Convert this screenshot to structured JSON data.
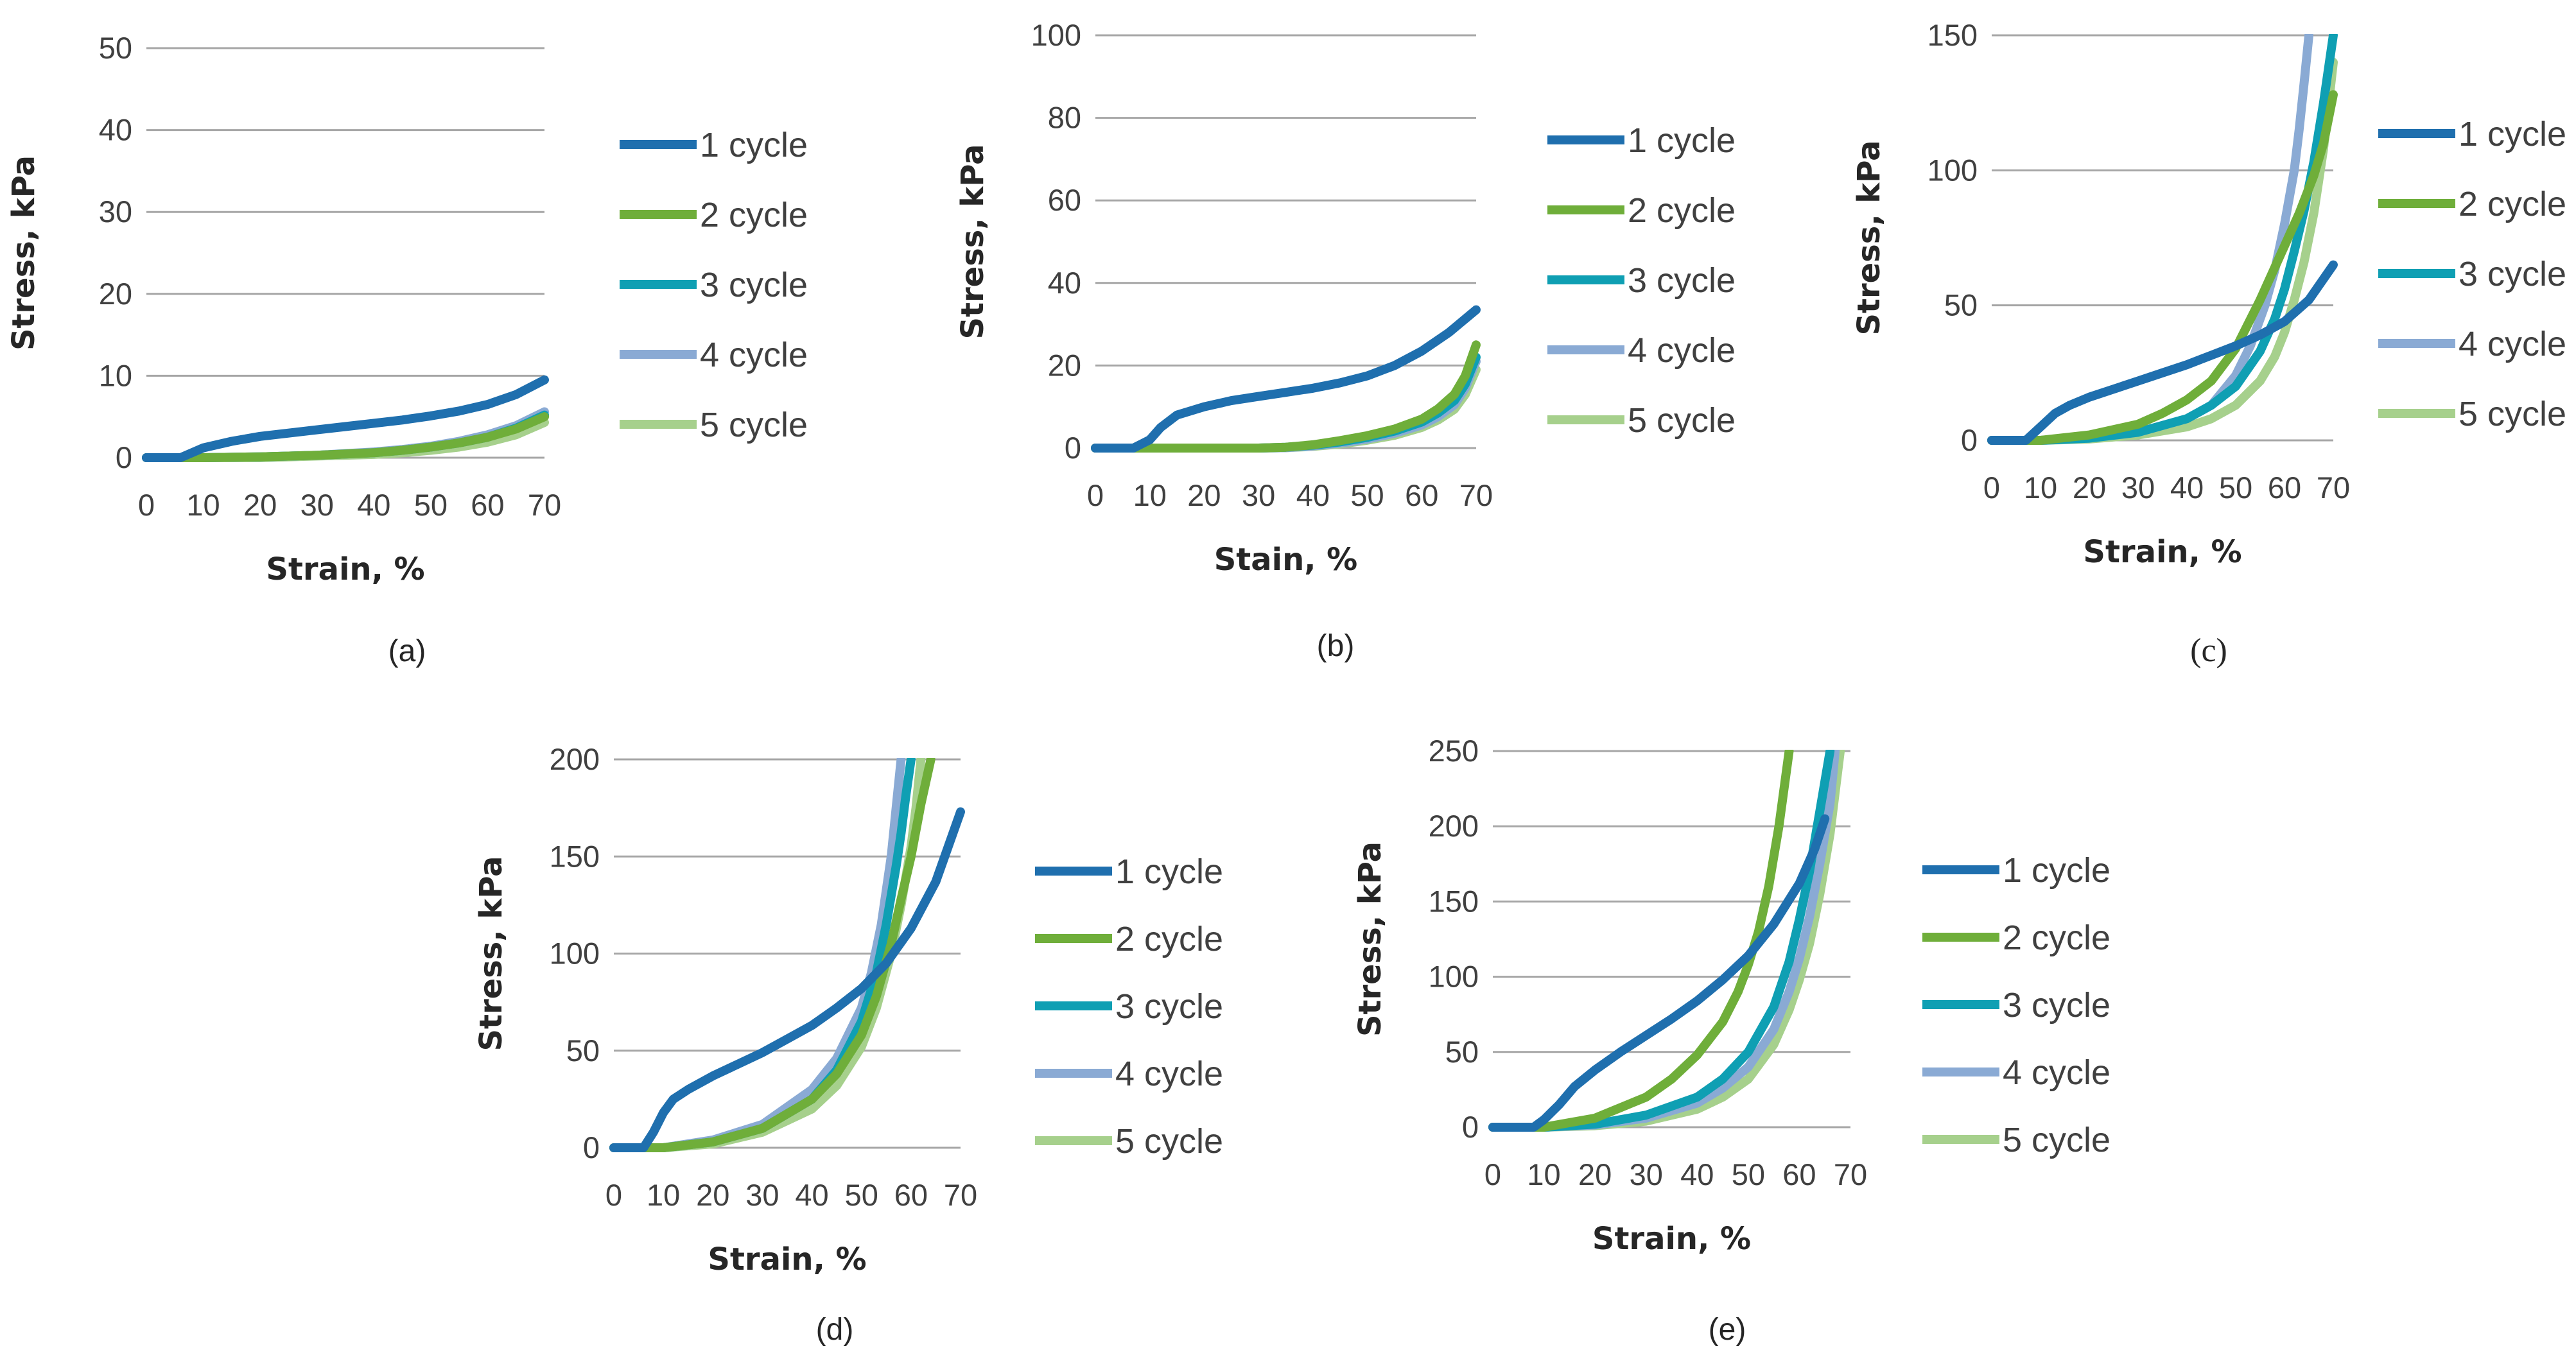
{
  "colors": {
    "1 cycle": "#1f6fae",
    "2 cycle": "#6fae3a",
    "3 cycle": "#0f9fb3",
    "4 cycle": "#8aaad4",
    "5 cycle": "#a6d08c"
  },
  "chart_data": [
    {
      "id": "a",
      "type": "line",
      "caption": "(a)",
      "xlabel": "Strain, %",
      "ylabel": "Stress, kPa",
      "xlim": [
        0,
        70
      ],
      "ylim": [
        0,
        50
      ],
      "xticks": [
        0,
        10,
        20,
        30,
        40,
        50,
        60,
        70
      ],
      "yticks": [
        0,
        10,
        20,
        30,
        40,
        50
      ],
      "legend_position": "right",
      "series": [
        {
          "name": "1 cycle",
          "x": [
            0,
            6,
            10,
            15,
            20,
            25,
            30,
            35,
            40,
            45,
            50,
            55,
            60,
            65,
            70
          ],
          "y": [
            0,
            0,
            1.2,
            2.0,
            2.6,
            3.0,
            3.4,
            3.8,
            4.2,
            4.6,
            5.1,
            5.7,
            6.5,
            7.7,
            9.5
          ]
        },
        {
          "name": "2 cycle",
          "x": [
            0,
            10,
            20,
            30,
            40,
            45,
            50,
            55,
            60,
            65,
            70
          ],
          "y": [
            0,
            0,
            0.1,
            0.3,
            0.6,
            0.9,
            1.3,
            1.8,
            2.5,
            3.5,
            5.0
          ]
        },
        {
          "name": "3 cycle",
          "x": [
            0,
            10,
            20,
            30,
            40,
            45,
            50,
            55,
            60,
            65,
            70
          ],
          "y": [
            0,
            0,
            0.1,
            0.3,
            0.6,
            0.9,
            1.3,
            1.8,
            2.5,
            3.6,
            5.2
          ]
        },
        {
          "name": "4 cycle",
          "x": [
            0,
            10,
            20,
            30,
            40,
            45,
            50,
            55,
            60,
            65,
            70
          ],
          "y": [
            0,
            0,
            0.1,
            0.3,
            0.7,
            1.0,
            1.4,
            2.0,
            2.8,
            3.9,
            5.6
          ]
        },
        {
          "name": "5 cycle",
          "x": [
            0,
            10,
            20,
            30,
            40,
            45,
            50,
            55,
            60,
            65,
            70
          ],
          "y": [
            0,
            0,
            0,
            0.2,
            0.4,
            0.6,
            0.9,
            1.3,
            1.9,
            2.8,
            4.3
          ]
        }
      ]
    },
    {
      "id": "b",
      "type": "line",
      "caption": "(b)",
      "xlabel": "Stain, %",
      "ylabel": "Stress, kPa",
      "xlim": [
        0,
        70
      ],
      "ylim": [
        0,
        100
      ],
      "xticks": [
        0,
        10,
        20,
        30,
        40,
        50,
        60,
        70
      ],
      "yticks": [
        0,
        20,
        40,
        60,
        80,
        100
      ],
      "legend_position": "right",
      "series": [
        {
          "name": "1 cycle",
          "x": [
            0,
            7,
            10,
            12,
            15,
            20,
            25,
            30,
            35,
            40,
            45,
            50,
            55,
            60,
            65,
            70
          ],
          "y": [
            0,
            0,
            2,
            5,
            8,
            10,
            11.5,
            12.5,
            13.5,
            14.5,
            15.8,
            17.5,
            20,
            23.5,
            28,
            33.5
          ]
        },
        {
          "name": "2 cycle",
          "x": [
            0,
            30,
            35,
            40,
            45,
            50,
            55,
            60,
            63,
            66,
            68,
            70
          ],
          "y": [
            0,
            0,
            0.2,
            0.8,
            1.8,
            3.0,
            4.6,
            7.0,
            9.5,
            13,
            17.5,
            25
          ]
        },
        {
          "name": "3 cycle",
          "x": [
            0,
            30,
            35,
            40,
            45,
            50,
            55,
            60,
            63,
            66,
            68,
            70
          ],
          "y": [
            0,
            0,
            0.2,
            0.7,
            1.5,
            2.6,
            4.1,
            6.3,
            8.5,
            11.5,
            15.5,
            22
          ]
        },
        {
          "name": "4 cycle",
          "x": [
            0,
            30,
            35,
            40,
            45,
            50,
            55,
            60,
            63,
            66,
            68,
            70
          ],
          "y": [
            0,
            0,
            0.1,
            0.5,
            1.2,
            2.2,
            3.6,
            5.6,
            7.6,
            10.5,
            14.5,
            21
          ]
        },
        {
          "name": "5 cycle",
          "x": [
            0,
            30,
            35,
            40,
            45,
            50,
            55,
            60,
            63,
            66,
            68,
            70
          ],
          "y": [
            0,
            0,
            0.1,
            0.4,
            1.0,
            1.9,
            3.1,
            5.0,
            6.8,
            9.4,
            13,
            19
          ]
        }
      ]
    },
    {
      "id": "c",
      "type": "line",
      "caption": "(c)",
      "xlabel": "Strain, %",
      "ylabel": "Stress, kPa",
      "xlim": [
        0,
        70
      ],
      "ylim": [
        0,
        150
      ],
      "xticks": [
        0,
        10,
        20,
        30,
        40,
        50,
        60,
        70
      ],
      "yticks": [
        0,
        50,
        100,
        150
      ],
      "legend_position": "right",
      "series": [
        {
          "name": "1 cycle",
          "x": [
            0,
            7,
            10,
            13,
            16,
            20,
            25,
            30,
            35,
            40,
            45,
            50,
            55,
            60,
            65,
            70
          ],
          "y": [
            0,
            0,
            5,
            10,
            13,
            16,
            19,
            22,
            25,
            28,
            31.5,
            35,
            39,
            44,
            52,
            65
          ]
        },
        {
          "name": "2 cycle",
          "x": [
            0,
            10,
            20,
            30,
            35,
            40,
            45,
            50,
            55,
            60,
            63,
            66,
            68,
            70
          ],
          "y": [
            0,
            0,
            2,
            6,
            10,
            15,
            22,
            34,
            52,
            72,
            84,
            98,
            110,
            128
          ]
        },
        {
          "name": "3 cycle",
          "x": [
            0,
            10,
            20,
            30,
            40,
            45,
            50,
            55,
            58,
            60,
            62,
            64,
            66,
            68,
            70
          ],
          "y": [
            0,
            0,
            0.8,
            3,
            8,
            13,
            20,
            33,
            45,
            56,
            70,
            85,
            103,
            125,
            150
          ]
        },
        {
          "name": "4 cycle",
          "x": [
            0,
            10,
            20,
            30,
            40,
            45,
            50,
            53,
            56,
            58,
            60,
            62,
            63,
            64,
            65
          ],
          "y": [
            0,
            0,
            0.8,
            3,
            8,
            13,
            24,
            35,
            50,
            63,
            80,
            100,
            115,
            132,
            150
          ]
        },
        {
          "name": "5 cycle",
          "x": [
            0,
            10,
            20,
            30,
            40,
            45,
            50,
            55,
            58,
            60,
            62,
            64,
            66,
            68,
            70
          ],
          "y": [
            0,
            0,
            0.5,
            2,
            5,
            8,
            13,
            22,
            31,
            40,
            52,
            66,
            84,
            108,
            140
          ]
        }
      ]
    },
    {
      "id": "d",
      "type": "line",
      "caption": "(d)",
      "xlabel": "Strain, %",
      "ylabel": "Stress, kPa",
      "xlim": [
        0,
        70
      ],
      "ylim": [
        0,
        200
      ],
      "xticks": [
        0,
        10,
        20,
        30,
        40,
        50,
        60,
        70
      ],
      "yticks": [
        0,
        50,
        100,
        150,
        200
      ],
      "legend_position": "right",
      "series": [
        {
          "name": "1 cycle",
          "x": [
            0,
            6,
            8,
            10,
            12,
            15,
            20,
            25,
            30,
            35,
            40,
            45,
            50,
            55,
            60,
            65,
            70
          ],
          "y": [
            0,
            0,
            8,
            18,
            25,
            30,
            37,
            43,
            49,
            56,
            63,
            72,
            82,
            95,
            113,
            137,
            173
          ]
        },
        {
          "name": "2 cycle",
          "x": [
            0,
            10,
            20,
            30,
            40,
            45,
            50,
            53,
            56,
            58,
            60,
            62,
            64
          ],
          "y": [
            0,
            0,
            3,
            10,
            25,
            38,
            58,
            78,
            105,
            128,
            150,
            177,
            200
          ]
        },
        {
          "name": "3 cycle",
          "x": [
            0,
            10,
            20,
            30,
            40,
            45,
            50,
            53,
            55,
            57,
            58,
            59,
            60
          ],
          "y": [
            0,
            0,
            3,
            10,
            25,
            40,
            65,
            90,
            115,
            145,
            162,
            182,
            200
          ]
        },
        {
          "name": "4 cycle",
          "x": [
            0,
            10,
            20,
            30,
            40,
            45,
            50,
            52,
            54,
            56,
            57,
            58
          ],
          "y": [
            0,
            0,
            4,
            12,
            30,
            46,
            72,
            90,
            115,
            150,
            175,
            200
          ]
        },
        {
          "name": "5 cycle",
          "x": [
            0,
            10,
            20,
            30,
            40,
            45,
            50,
            53,
            56,
            58,
            60,
            61,
            62
          ],
          "y": [
            0,
            0,
            2,
            8,
            20,
            32,
            52,
            72,
            100,
            125,
            155,
            175,
            200
          ]
        }
      ]
    },
    {
      "id": "e",
      "type": "line",
      "caption": "(e)",
      "xlabel": "Strain, %",
      "ylabel": "Stress, kPa",
      "xlim": [
        0,
        70
      ],
      "ylim": [
        0,
        250
      ],
      "xticks": [
        0,
        10,
        20,
        30,
        40,
        50,
        60,
        70
      ],
      "yticks": [
        0,
        50,
        100,
        150,
        200,
        250
      ],
      "legend_position": "right",
      "series": [
        {
          "name": "1 cycle",
          "x": [
            0,
            8,
            10,
            13,
            16,
            20,
            25,
            30,
            35,
            40,
            45,
            50,
            55,
            60,
            63,
            65
          ],
          "y": [
            0,
            0,
            5,
            15,
            27,
            38,
            50,
            61,
            72,
            84,
            98,
            114,
            135,
            162,
            185,
            205
          ]
        },
        {
          "name": "2 cycle",
          "x": [
            0,
            10,
            20,
            30,
            35,
            40,
            45,
            48,
            50,
            52,
            54,
            56,
            58
          ],
          "y": [
            0,
            0,
            6,
            20,
            32,
            48,
            70,
            90,
            108,
            130,
            160,
            200,
            250
          ]
        },
        {
          "name": "3 cycle",
          "x": [
            0,
            10,
            20,
            30,
            40,
            45,
            50,
            55,
            58,
            60,
            62,
            64,
            66
          ],
          "y": [
            0,
            0,
            2,
            8,
            20,
            32,
            50,
            80,
            110,
            138,
            170,
            210,
            250
          ]
        },
        {
          "name": "4 cycle",
          "x": [
            0,
            10,
            20,
            30,
            40,
            45,
            50,
            55,
            58,
            60,
            62,
            64,
            66,
            67
          ],
          "y": [
            0,
            0,
            1.5,
            6,
            16,
            26,
            40,
            65,
            90,
            112,
            140,
            175,
            215,
            250
          ]
        },
        {
          "name": "5 cycle",
          "x": [
            0,
            10,
            20,
            30,
            40,
            45,
            50,
            55,
            58,
            60,
            62,
            64,
            66,
            68
          ],
          "y": [
            0,
            0,
            1,
            4,
            12,
            20,
            32,
            55,
            78,
            98,
            122,
            155,
            195,
            250
          ]
        }
      ]
    }
  ]
}
